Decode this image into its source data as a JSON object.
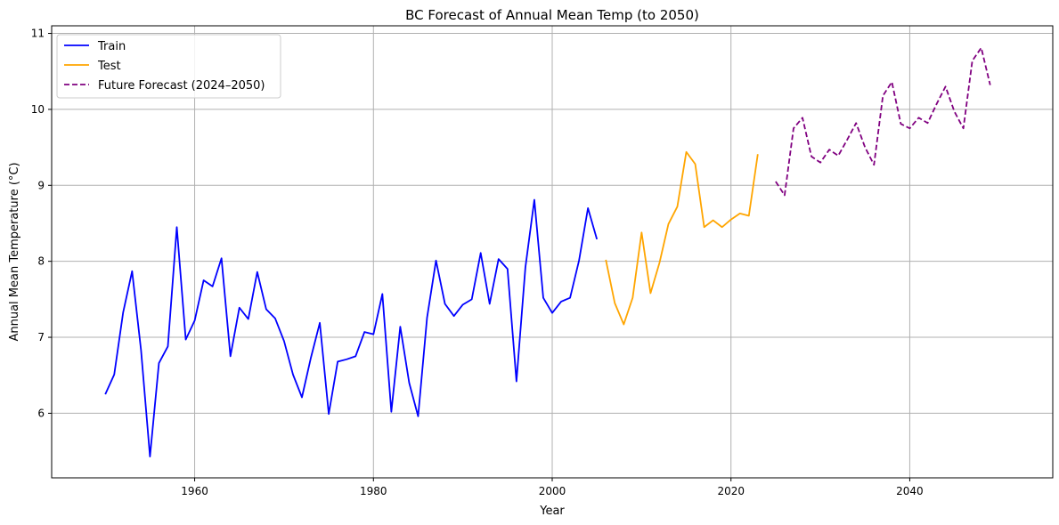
{
  "chart_data": {
    "type": "line",
    "title": "BC Forecast of Annual Mean Temp (to 2050)",
    "xlabel": "Year",
    "ylabel": "Annual Mean Temperature (°C)",
    "xlim": [
      1944,
      2056
    ],
    "ylim": [
      5.15,
      11.1
    ],
    "xticks": [
      1960,
      1980,
      2000,
      2020,
      2040
    ],
    "yticks": [
      6,
      7,
      8,
      9,
      10,
      11
    ],
    "grid": true,
    "legend_position": "upper-left",
    "series": [
      {
        "name": "Train",
        "color": "#0000ff",
        "dash": "solid",
        "x": [
          1950,
          1951,
          1952,
          1953,
          1954,
          1955,
          1956,
          1957,
          1958,
          1959,
          1960,
          1961,
          1962,
          1963,
          1964,
          1965,
          1966,
          1967,
          1968,
          1969,
          1970,
          1971,
          1972,
          1973,
          1974,
          1975,
          1976,
          1977,
          1978,
          1979,
          1980,
          1981,
          1982,
          1983,
          1984,
          1985,
          1986,
          1987,
          1988,
          1989,
          1990,
          1991,
          1992,
          1993,
          1994,
          1995,
          1996,
          1997,
          1998,
          1999,
          2000,
          2001,
          2002,
          2003,
          2004,
          2005
        ],
        "y": [
          6.25,
          6.51,
          7.33,
          7.87,
          6.83,
          5.43,
          6.66,
          6.88,
          8.45,
          6.97,
          7.22,
          7.75,
          7.67,
          8.04,
          6.75,
          7.39,
          7.24,
          7.86,
          7.37,
          7.25,
          6.95,
          6.51,
          6.21,
          6.73,
          7.19,
          5.99,
          6.68,
          6.71,
          6.75,
          7.07,
          7.04,
          7.57,
          6.02,
          7.14,
          6.4,
          5.96,
          7.26,
          8.01,
          7.44,
          7.28,
          7.43,
          7.5,
          8.11,
          7.44,
          8.03,
          7.9,
          6.42,
          7.92,
          8.81,
          7.52,
          7.32,
          7.47,
          7.52,
          8.01,
          8.7,
          8.29
        ]
      },
      {
        "name": "Test",
        "color": "#ffa500",
        "dash": "solid",
        "x": [
          2006,
          2007,
          2008,
          2009,
          2010,
          2011,
          2012,
          2013,
          2014,
          2015,
          2016,
          2017,
          2018,
          2019,
          2020,
          2021,
          2022,
          2023
        ],
        "y": [
          8.02,
          7.45,
          7.17,
          7.52,
          8.38,
          7.58,
          7.98,
          8.49,
          8.72,
          9.44,
          9.28,
          8.45,
          8.54,
          8.45,
          8.55,
          8.63,
          8.6,
          9.41
        ]
      },
      {
        "name": "Future Forecast (2024–2050)",
        "color": "#800080",
        "dash": "dashed",
        "x": [
          2025,
          2026,
          2027,
          2028,
          2029,
          2030,
          2031,
          2032,
          2033,
          2034,
          2035,
          2036,
          2037,
          2038,
          2039,
          2040,
          2041,
          2042,
          2043,
          2044,
          2045,
          2046,
          2047,
          2048,
          2049
        ],
        "y": [
          9.05,
          8.87,
          9.75,
          9.89,
          9.38,
          9.3,
          9.47,
          9.39,
          9.6,
          9.82,
          9.5,
          9.27,
          10.18,
          10.36,
          9.81,
          9.75,
          9.89,
          9.82,
          10.07,
          10.3,
          9.97,
          9.75,
          10.64,
          10.81,
          10.32
        ]
      }
    ]
  }
}
